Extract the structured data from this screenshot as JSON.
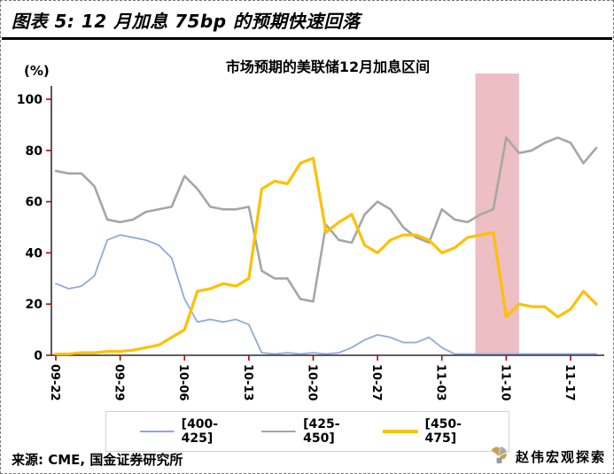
{
  "header": {
    "title": "图表 5: 12 月加息 75bp 的预期快速回落"
  },
  "chart_data": {
    "type": "line",
    "title": "市场预期的美联储12月加息区间",
    "unit_label": "(%)",
    "ylim": [
      0,
      100
    ],
    "yticks": [
      0,
      20,
      40,
      60,
      80,
      100
    ],
    "xtick_every": 5,
    "xtick_labels": [
      "09-22",
      "09-29",
      "10-06",
      "10-13",
      "10-20",
      "10-27",
      "11-03",
      "11-10",
      "11-17"
    ],
    "x_dates": [
      "09-22",
      "09-23",
      "09-26",
      "09-27",
      "09-28",
      "09-29",
      "09-30",
      "10-03",
      "10-04",
      "10-05",
      "10-06",
      "10-07",
      "10-10",
      "10-11",
      "10-12",
      "10-13",
      "10-14",
      "10-17",
      "10-18",
      "10-19",
      "10-20",
      "10-21",
      "10-24",
      "10-25",
      "10-26",
      "10-27",
      "10-28",
      "10-31",
      "11-01",
      "11-02",
      "11-03",
      "11-04",
      "11-07",
      "11-08",
      "11-09",
      "11-10",
      "11-11",
      "11-14",
      "11-15",
      "11-16",
      "11-17",
      "11-18",
      "11-21"
    ],
    "series": [
      {
        "name": "[400-425]",
        "color": "#8FAADC",
        "width": 1.8,
        "values": [
          28,
          26,
          27,
          31,
          45,
          47,
          46,
          45,
          43,
          38,
          22,
          13,
          14,
          13,
          14,
          12,
          1,
          0.5,
          1,
          0.5,
          1,
          0.5,
          1,
          3,
          6,
          8,
          7,
          5,
          5,
          7,
          3,
          0.5,
          0.5,
          0.5,
          0.5,
          0.5,
          0.5,
          0.5,
          0.5,
          0.5,
          0.5,
          0.5,
          0.5
        ]
      },
      {
        "name": "[425-450]",
        "color": "#A6A6A6",
        "width": 2.6,
        "values": [
          72,
          71,
          71,
          66,
          53,
          52,
          53,
          56,
          57,
          58,
          70,
          65,
          58,
          57,
          57,
          58,
          33,
          30,
          30,
          22,
          21,
          51,
          45,
          44,
          55,
          60,
          57,
          50,
          46,
          44,
          57,
          53,
          52,
          55,
          57,
          85,
          79,
          80,
          83,
          85,
          83,
          75,
          81
        ]
      },
      {
        "name": "[450-475]",
        "color": "#FFC000",
        "width": 3.2,
        "values": [
          0.5,
          0.5,
          1,
          1,
          1.5,
          1.5,
          2,
          3,
          4,
          7,
          10,
          25,
          26,
          28,
          27,
          30,
          65,
          68,
          67,
          75,
          77,
          48,
          52,
          55,
          43,
          40,
          45,
          47,
          47,
          45,
          40,
          42,
          46,
          47,
          48,
          15,
          20,
          19,
          19,
          15,
          18,
          25,
          20
        ]
      }
    ],
    "highlight_band": {
      "start_index": 32.6,
      "end_index": 36,
      "color": "#EDBEC3"
    },
    "axis_color": "#000000",
    "tick_color": "#C00000",
    "legend_position": "bottom",
    "grid": false
  },
  "footer": {
    "source": "来源: CME, 国金证券研究所"
  },
  "watermark": {
    "text": "赵伟宏观探索"
  }
}
